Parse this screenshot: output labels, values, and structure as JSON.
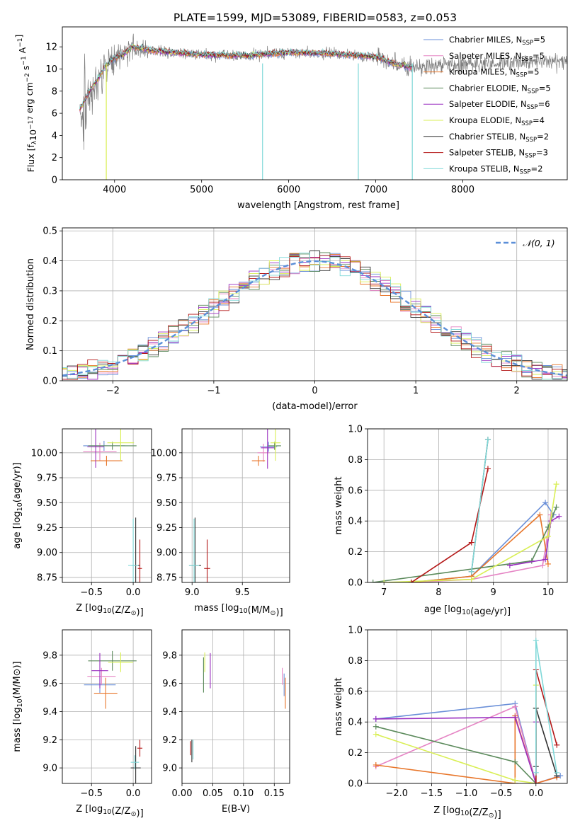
{
  "figure_title": "PLATE=1599, MJD=53089, FIBERID=0583, z=0.053",
  "colors": {
    "chabrier_miles": "#6a8fd8",
    "salpeter_miles": "#e584c4",
    "kroupa_miles": "#e8762a",
    "chabrier_elodie": "#5b8a5b",
    "salpeter_elodie": "#9a2fc0",
    "kroupa_elodie": "#d9ef55",
    "chabrier_stelib": "#333333",
    "salpeter_stelib": "#b41818",
    "kroupa_stelib": "#7fd8d8",
    "data": "#7f7f7f",
    "normal_curve": "#5b8fd8",
    "grid": "#b0b0b0"
  },
  "chart_data": [
    {
      "id": "spectrum",
      "type": "line",
      "xlabel": "wavelength [Angstrom, rest frame]",
      "ylabel": "Flux [f_λ 10^-17 erg cm^-2 s^-1 A^-1]",
      "xlim": [
        3400,
        9200
      ],
      "ylim": [
        0,
        13.8
      ],
      "xticks": [
        4000,
        5000,
        6000,
        7000,
        8000
      ],
      "yticks": [
        0,
        2,
        4,
        6,
        8,
        10,
        12
      ],
      "grid": false,
      "legend_position": "top-right",
      "legend": [
        {
          "label": "Chabrier MILES, N",
          "sub": "SSP",
          "suffix": "=5",
          "color_key": "chabrier_miles"
        },
        {
          "label": "Salpeter MILES, N",
          "sub": "SSP",
          "suffix": "=5",
          "color_key": "salpeter_miles"
        },
        {
          "label": "Kroupa MILES, N",
          "sub": "SSP",
          "suffix": "=5",
          "color_key": "kroupa_miles"
        },
        {
          "label": "Chabrier ELODIE, N",
          "sub": "SSP",
          "suffix": "=5",
          "color_key": "chabrier_elodie"
        },
        {
          "label": "Salpeter ELODIE, N",
          "sub": "SSP",
          "suffix": "=6",
          "color_key": "salpeter_elodie"
        },
        {
          "label": "Kroupa ELODIE, N",
          "sub": "SSP",
          "suffix": "=4",
          "color_key": "kroupa_elodie"
        },
        {
          "label": "Chabrier STELIB, N",
          "sub": "SSP",
          "suffix": "=2",
          "color_key": "chabrier_stelib"
        },
        {
          "label": "Salpeter STELIB, N",
          "sub": "SSP",
          "suffix": "=3",
          "color_key": "salpeter_stelib"
        },
        {
          "label": "Kroupa STELIB, N",
          "sub": "SSP",
          "suffix": "=2",
          "color_key": "kroupa_stelib"
        }
      ],
      "continuum_x": [
        3600,
        3700,
        3800,
        3900,
        4000,
        4100,
        4200,
        4500,
        5000,
        5500,
        6000,
        6500,
        7000,
        7200,
        7400
      ],
      "continuum_y": [
        6.3,
        7.8,
        9.0,
        10.3,
        11.0,
        11.3,
        12.0,
        11.6,
        11.3,
        11.2,
        11.5,
        11.4,
        11.1,
        10.5,
        10.2
      ],
      "data_range": [
        3600,
        9200
      ],
      "model_range": [
        3600,
        7420
      ],
      "spikes_x": [
        3905,
        5700,
        6800,
        7420
      ]
    },
    {
      "id": "residuals",
      "type": "step",
      "xlabel": "(data-model)/error",
      "ylabel": "Normed distribution",
      "xlim": [
        -2.5,
        2.5
      ],
      "ylim": [
        0,
        0.51
      ],
      "xticks": [
        -2,
        -1,
        0,
        1,
        2
      ],
      "yticks": [
        0.0,
        0.1,
        0.2,
        0.3,
        0.4,
        0.5
      ],
      "grid": true,
      "legend_position": "top-right",
      "legend_label": "𝒩(0, 1)",
      "bin_width": 0.1
    },
    {
      "id": "age_vs_z",
      "type": "scatter",
      "xlabel_pre": "Z [log",
      "xlabel_sub": "10",
      "xlabel_post": "(Z/Z",
      "xlabel_sym": "⊙",
      "xlabel_end": ")]",
      "ylabel": "age  [log10(age/yr)]",
      "ylabel_pre": "age  [log",
      "ylabel_sub": "10",
      "ylabel_post": "(age/yr)]",
      "xlim": [
        -0.85,
        0.22
      ],
      "ylim": [
        8.7,
        10.24
      ],
      "xticks": [
        -0.5,
        0.0
      ],
      "yticks": [
        8.75,
        9.0,
        9.25,
        9.5,
        9.75,
        10.0
      ],
      "grid": true,
      "points": [
        {
          "x": -0.35,
          "y": 10.07,
          "xe": 0.5,
          "ye": 0.1,
          "color_key": "chabrier_miles"
        },
        {
          "x": -0.4,
          "y": 10.01,
          "xe": 0.4,
          "ye": 0.18,
          "color_key": "salpeter_miles"
        },
        {
          "x": -0.32,
          "y": 9.92,
          "xe": 0.38,
          "ye": 0.1,
          "color_key": "kroupa_miles"
        },
        {
          "x": -0.25,
          "y": 10.07,
          "xe": 0.58,
          "ye": 0.08,
          "color_key": "chabrier_elodie"
        },
        {
          "x": -0.45,
          "y": 10.06,
          "xe": 0.2,
          "ye": 0.42,
          "color_key": "salpeter_elodie"
        },
        {
          "x": -0.15,
          "y": 10.1,
          "xe": 0.32,
          "ye": 0.36,
          "color_key": "kroupa_elodie"
        },
        {
          "x": 0.03,
          "y": 8.87,
          "xe": 0.1,
          "ye": 0.96,
          "color_key": "chabrier_stelib"
        },
        {
          "x": 0.08,
          "y": 8.84,
          "xe": 0.05,
          "ye": 0.58,
          "color_key": "salpeter_stelib"
        },
        {
          "x": 0.0,
          "y": 8.87,
          "xe": 0.12,
          "ye": 0.94,
          "color_key": "kroupa_stelib"
        }
      ]
    },
    {
      "id": "age_vs_mass",
      "type": "scatter",
      "xlabel_pre": "mass [log",
      "xlabel_sub": "10",
      "xlabel_post": "(M/M",
      "xlabel_sym": "⊙",
      "xlabel_end": ")]",
      "xlim": [
        8.9,
        9.97
      ],
      "ylim": [
        8.7,
        10.24
      ],
      "xticks": [
        9.0,
        9.5
      ],
      "yticks": [
        8.75,
        9.0,
        9.25,
        9.5,
        9.75,
        10.0
      ],
      "grid": true,
      "points": [
        {
          "x": 9.76,
          "y": 10.06,
          "xe": 0.17,
          "ye": 0.1,
          "color_key": "chabrier_miles"
        },
        {
          "x": 9.71,
          "y": 10.0,
          "xe": 0.12,
          "ye": 0.18,
          "color_key": "salpeter_miles"
        },
        {
          "x": 9.66,
          "y": 9.92,
          "xe": 0.13,
          "ye": 0.1,
          "color_key": "kroupa_miles"
        },
        {
          "x": 9.82,
          "y": 10.07,
          "xe": 0.13,
          "ye": 0.08,
          "color_key": "chabrier_elodie"
        },
        {
          "x": 9.75,
          "y": 10.05,
          "xe": 0.13,
          "ye": 0.42,
          "color_key": "salpeter_elodie"
        },
        {
          "x": 9.83,
          "y": 10.1,
          "xe": 0.1,
          "ye": 0.36,
          "color_key": "kroupa_elodie"
        },
        {
          "x": 9.03,
          "y": 8.87,
          "xe": 0.12,
          "ye": 0.96,
          "color_key": "chabrier_stelib"
        },
        {
          "x": 9.15,
          "y": 8.84,
          "xe": 0.06,
          "ye": 0.58,
          "color_key": "salpeter_stelib"
        },
        {
          "x": 9.02,
          "y": 8.87,
          "xe": 0.1,
          "ye": 0.94,
          "color_key": "kroupa_stelib"
        }
      ]
    },
    {
      "id": "weight_vs_age",
      "type": "line",
      "xlabel_pre": "age  [log",
      "xlabel_sub": "10",
      "xlabel_post": "(age/yr)]",
      "ylabel": "mass weight",
      "xlim": [
        6.7,
        10.35
      ],
      "ylim": [
        0.0,
        1.0
      ],
      "xticks": [
        7,
        8,
        9,
        10
      ],
      "yticks": [
        0.0,
        0.2,
        0.4,
        0.6,
        0.8,
        1.0
      ],
      "grid": true,
      "series": [
        {
          "color_key": "chabrier_miles",
          "x": [
            7.5,
            8.6,
            9.95,
            10.1
          ],
          "y": [
            0.0,
            0.04,
            0.52,
            0.44
          ]
        },
        {
          "color_key": "salpeter_miles",
          "x": [
            7.5,
            8.6,
            9.9,
            10.05
          ],
          "y": [
            0.0,
            0.02,
            0.11,
            0.44
          ]
        },
        {
          "color_key": "kroupa_miles",
          "x": [
            7.5,
            8.6,
            9.85,
            10.0
          ],
          "y": [
            0.0,
            0.04,
            0.44,
            0.12
          ]
        },
        {
          "color_key": "chabrier_elodie",
          "x": [
            6.8,
            9.7,
            10.0,
            10.15
          ],
          "y": [
            0.0,
            0.14,
            0.36,
            0.49
          ]
        },
        {
          "color_key": "salpeter_elodie",
          "x": [
            9.3,
            9.95,
            10.05,
            10.2
          ],
          "y": [
            0.11,
            0.15,
            0.4,
            0.43
          ]
        },
        {
          "color_key": "kroupa_elodie",
          "x": [
            7.0,
            8.6,
            10.0,
            10.15
          ],
          "y": [
            0.0,
            0.02,
            0.3,
            0.64
          ]
        },
        {
          "color_key": "chabrier_stelib",
          "x": [
            8.6,
            8.9
          ],
          "y": [
            0.07,
            0.93
          ]
        },
        {
          "color_key": "salpeter_stelib",
          "x": [
            7.5,
            8.6,
            8.9
          ],
          "y": [
            0.0,
            0.26,
            0.74
          ]
        },
        {
          "color_key": "kroupa_stelib",
          "x": [
            8.6,
            8.9
          ],
          "y": [
            0.07,
            0.93
          ]
        }
      ]
    },
    {
      "id": "mass_vs_z",
      "type": "scatter",
      "xlabel_pre": "Z [log",
      "xlabel_sub": "10",
      "xlabel_post": "(Z/Z",
      "xlabel_sym": "⊙",
      "xlabel_end": ")]",
      "ylabel_pre": "mass [log",
      "ylabel_sub": "10",
      "ylabel_post": "(M/M⊙)]",
      "xlim": [
        -0.85,
        0.22
      ],
      "ylim": [
        8.89,
        9.98
      ],
      "xticks": [
        -0.5,
        0.0
      ],
      "yticks": [
        9.0,
        9.2,
        9.4,
        9.6,
        9.8
      ],
      "grid": true,
      "points": [
        {
          "x": -0.4,
          "y": 9.59,
          "xe": 0.38,
          "ye": 0.12,
          "color_key": "chabrier_miles"
        },
        {
          "x": -0.38,
          "y": 9.65,
          "xe": 0.34,
          "ye": 0.12,
          "color_key": "salpeter_miles"
        },
        {
          "x": -0.33,
          "y": 9.53,
          "xe": 0.28,
          "ye": 0.22,
          "color_key": "kroupa_miles"
        },
        {
          "x": -0.25,
          "y": 9.76,
          "xe": 0.58,
          "ye": 0.14,
          "color_key": "chabrier_elodie"
        },
        {
          "x": -0.4,
          "y": 9.69,
          "xe": 0.2,
          "ye": 0.25,
          "color_key": "salpeter_elodie"
        },
        {
          "x": -0.15,
          "y": 9.75,
          "xe": 0.3,
          "ye": 0.14,
          "color_key": "kroupa_elodie"
        },
        {
          "x": 0.03,
          "y": 9.0,
          "xe": 0.12,
          "ye": 0.31,
          "color_key": "chabrier_stelib"
        },
        {
          "x": 0.08,
          "y": 9.14,
          "xe": 0.06,
          "ye": 0.12,
          "color_key": "salpeter_stelib"
        },
        {
          "x": 0.02,
          "y": 9.04,
          "xe": 0.1,
          "ye": 0.1,
          "color_key": "kroupa_stelib"
        }
      ]
    },
    {
      "id": "mass_vs_ebv",
      "type": "scatter",
      "xlabel": "E(B-V)",
      "xlim": [
        0.0,
        0.175
      ],
      "ylim": [
        8.89,
        9.98
      ],
      "xticks": [
        0.0,
        0.05,
        0.1,
        0.15
      ],
      "yticks": [
        9.0,
        9.2,
        9.4,
        9.6,
        9.8
      ],
      "grid": true,
      "points": [
        {
          "x": 0.016,
          "y": 9.12,
          "xe": 0.0,
          "ye": 0.16,
          "color_key": "chabrier_stelib"
        },
        {
          "x": 0.014,
          "y": 9.14,
          "xe": 0.0,
          "ye": 0.1,
          "color_key": "salpeter_stelib"
        },
        {
          "x": 0.018,
          "y": 9.13,
          "xe": 0.0,
          "ye": 0.14,
          "color_key": "kroupa_stelib"
        },
        {
          "x": 0.035,
          "y": 9.66,
          "xe": 0.0,
          "ye": 0.25,
          "color_key": "chabrier_elodie"
        },
        {
          "x": 0.037,
          "y": 9.75,
          "xe": 0.0,
          "ye": 0.14,
          "color_key": "kroupa_elodie"
        },
        {
          "x": 0.046,
          "y": 9.69,
          "xe": 0.0,
          "ye": 0.25,
          "color_key": "salpeter_elodie"
        },
        {
          "x": 0.163,
          "y": 9.65,
          "xe": 0.0,
          "ye": 0.12,
          "color_key": "salpeter_miles"
        },
        {
          "x": 0.168,
          "y": 9.53,
          "xe": 0.0,
          "ye": 0.22,
          "color_key": "kroupa_miles"
        },
        {
          "x": 0.166,
          "y": 9.59,
          "xe": 0.0,
          "ye": 0.16,
          "color_key": "chabrier_miles"
        }
      ]
    },
    {
      "id": "weight_vs_z",
      "type": "line",
      "xlabel_pre": "Z [log",
      "xlabel_sub": "10",
      "xlabel_post": "(Z/Z",
      "xlabel_sym": "⊙",
      "xlabel_end": ")]",
      "ylabel": "mass weight",
      "xlim": [
        -2.42,
        0.45
      ],
      "ylim": [
        0.0,
        1.0
      ],
      "xticks": [
        -2.0,
        -1.5,
        -1.0,
        -0.5,
        0.0
      ],
      "xtick_labels": [
        "−2.0",
        "−1.5",
        "−1.0",
        "−0.5",
        "0.0"
      ],
      "yticks": [
        0.0,
        0.2,
        0.4,
        0.6,
        0.8,
        1.0
      ],
      "grid": true,
      "series": [
        {
          "color_key": "chabrier_miles",
          "x": [
            -2.3,
            -0.3,
            0.0,
            0.35
          ],
          "y": [
            0.42,
            0.52,
            0.0,
            0.05
          ]
        },
        {
          "color_key": "salpeter_miles",
          "x": [
            -2.3,
            -0.3,
            0.0,
            0.3
          ],
          "y": [
            0.11,
            0.5,
            0.0,
            0.04
          ]
        },
        {
          "color_key": "kroupa_miles",
          "x": [
            -2.3,
            -0.3,
            -0.3,
            0.0,
            0.3
          ],
          "y": [
            0.12,
            0.0,
            0.44,
            0.0,
            0.04
          ]
        },
        {
          "color_key": "chabrier_elodie",
          "x": [
            -2.3,
            -0.3,
            0.0,
            0.0
          ],
          "y": [
            0.37,
            0.14,
            0.0,
            0.49
          ]
        },
        {
          "color_key": "salpeter_elodie",
          "x": [
            -2.3,
            -0.3,
            0.0,
            0.0
          ],
          "y": [
            0.42,
            0.43,
            0.0,
            0.4
          ]
        },
        {
          "color_key": "kroupa_elodie",
          "x": [
            -2.3,
            -0.3,
            0.0,
            0.0
          ],
          "y": [
            0.32,
            0.02,
            0.0,
            0.64
          ]
        },
        {
          "color_key": "chabrier_stelib",
          "x": [
            0.0,
            0.0,
            0.3
          ],
          "y": [
            0.11,
            0.49,
            0.05
          ]
        },
        {
          "color_key": "salpeter_stelib",
          "x": [
            0.0,
            0.0,
            0.3
          ],
          "y": [
            0.0,
            0.74,
            0.25
          ]
        },
        {
          "color_key": "kroupa_stelib",
          "x": [
            0.0,
            0.0,
            0.3
          ],
          "y": [
            0.07,
            0.93,
            0.07
          ]
        }
      ]
    }
  ]
}
